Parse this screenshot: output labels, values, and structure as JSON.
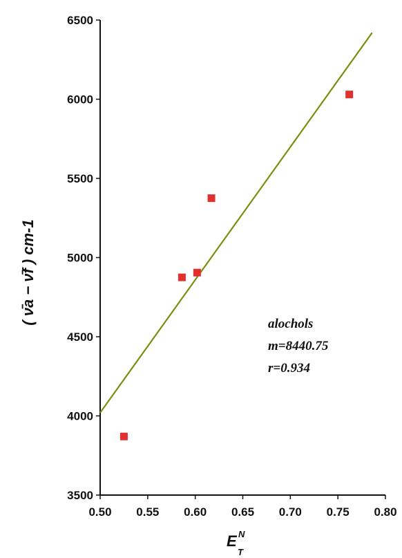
{
  "chart_data": {
    "type": "scatter",
    "title": "",
    "xlabel": {
      "base": "E",
      "sup": "N",
      "sub": "T"
    },
    "ylabel": {
      "text": "( ν̄a − ν̄f ) cm-1"
    },
    "xlim": [
      0.5,
      0.8
    ],
    "ylim": [
      3500,
      6500
    ],
    "xticks": [
      "0.50",
      "0.55",
      "0.60",
      "0.65",
      "0.70",
      "0.75",
      "0.80"
    ],
    "yticks": [
      "3500",
      "4000",
      "4500",
      "5000",
      "5500",
      "6000",
      "6500"
    ],
    "grid": false,
    "series": [
      {
        "marker": "square",
        "color": "#e0312f",
        "points": [
          {
            "x": 0.525,
            "y": 3870
          },
          {
            "x": 0.586,
            "y": 4875
          },
          {
            "x": 0.602,
            "y": 4905
          },
          {
            "x": 0.617,
            "y": 5375
          },
          {
            "x": 0.762,
            "y": 6030
          }
        ]
      }
    ],
    "fit_line": {
      "color": "#7c8d0c",
      "points": [
        {
          "x": 0.5,
          "y": 4020
        },
        {
          "x": 0.786,
          "y": 6420
        }
      ]
    },
    "annotation": [
      "alochols",
      "m=8440.75",
      "r=0.934"
    ]
  }
}
